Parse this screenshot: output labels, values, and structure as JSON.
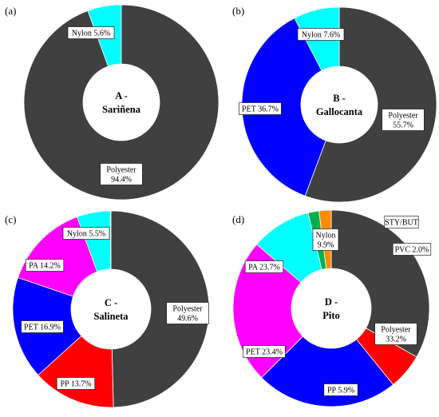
{
  "chart_data": [
    {
      "type": "pie",
      "panel": "(a)",
      "center_label": [
        "A -",
        "Sariñena"
      ],
      "slices": [
        {
          "name": "Nylon",
          "value": 5.6,
          "label": "Nylon 5.6%",
          "color": "#00ffff"
        },
        {
          "name": "Polyester",
          "value": 94.4,
          "label": [
            "Polyester",
            "94.4%"
          ],
          "color": "#404040"
        }
      ]
    },
    {
      "type": "pie",
      "panel": "(b)",
      "center_label": [
        "B -",
        "Gallocanta"
      ],
      "slices": [
        {
          "name": "Polyester",
          "value": 55.7,
          "label": [
            "Polyester",
            "55.7%"
          ],
          "color": "#404040"
        },
        {
          "name": "PET",
          "value": 36.7,
          "label": "PET 36.7%",
          "color": "#0000ff"
        },
        {
          "name": "Nylon",
          "value": 7.6,
          "label": "Nylon 7.6%",
          "color": "#00ffff"
        }
      ]
    },
    {
      "type": "pie",
      "panel": "(c)",
      "center_label": [
        "C -",
        "Salineta"
      ],
      "slices": [
        {
          "name": "Polyester",
          "value": 49.6,
          "label": [
            "Polyester",
            "49.6%"
          ],
          "color": "#404040"
        },
        {
          "name": "PP",
          "value": 13.7,
          "label": "PP 13.7%",
          "color": "#ff0000"
        },
        {
          "name": "PET",
          "value": 16.9,
          "label": "PET 16.9%",
          "color": "#0000ff"
        },
        {
          "name": "PA",
          "value": 14.2,
          "label": "PA 14.2%",
          "color": "#ff00ff"
        },
        {
          "name": "Nylon",
          "value": 5.5,
          "label": "Nylon 5.5%",
          "color": "#00ffff"
        },
        {
          "name": "",
          "value": 0.1,
          "label": "",
          "color": "#00b050"
        }
      ]
    },
    {
      "type": "pie",
      "panel": "(d)",
      "center_label": [
        "D -",
        "Pito"
      ],
      "slices": [
        {
          "name": "Polyester",
          "value": 33.2,
          "label": [
            "Polyester",
            "33.2%"
          ],
          "color": "#404040"
        },
        {
          "name": "PP",
          "value": 5.9,
          "label": "PP 5.9%",
          "color": "#ff0000"
        },
        {
          "name": "PET",
          "value": 23.4,
          "label": "PET 23.4%",
          "color": "#0000ff"
        },
        {
          "name": "PA",
          "value": 23.7,
          "label": "PA 23.7%",
          "color": "#ff00ff"
        },
        {
          "name": "Nylon",
          "value": 9.9,
          "label": [
            "Nylon",
            "9.9%"
          ],
          "color": "#00ffff"
        },
        {
          "name": "STY/BUT",
          "value": 1.8,
          "label": "STY/BUT",
          "color": "#00b050"
        },
        {
          "name": "PVC",
          "value": 2.0,
          "label": "PVC 2.0%",
          "color": "#ff8c00"
        }
      ]
    }
  ]
}
